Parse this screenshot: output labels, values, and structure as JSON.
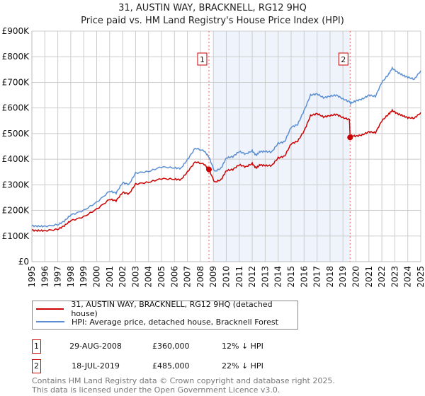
{
  "chart_data": {
    "type": "line",
    "title": "31, AUSTIN WAY, BRACKNELL, RG12 9HQ",
    "subtitle": "Price paid vs. HM Land Registry's House Price Index (HPI)",
    "xlim": [
      1995,
      2025
    ],
    "ylim": [
      0,
      900000
    ],
    "x_ticks": [
      "1995",
      "1996",
      "1997",
      "1998",
      "1999",
      "2000",
      "2001",
      "2002",
      "2003",
      "2004",
      "2005",
      "2006",
      "2007",
      "2008",
      "2009",
      "2010",
      "2011",
      "2012",
      "2013",
      "2014",
      "2015",
      "2016",
      "2017",
      "2018",
      "2019",
      "2020",
      "2021",
      "2022",
      "2023",
      "2024",
      "2025"
    ],
    "y_ticks": [
      {
        "value": 0,
        "label": "£0"
      },
      {
        "value": 100000,
        "label": "£100K"
      },
      {
        "value": 200000,
        "label": "£200K"
      },
      {
        "value": 300000,
        "label": "£300K"
      },
      {
        "value": 400000,
        "label": "£400K"
      },
      {
        "value": 500000,
        "label": "£500K"
      },
      {
        "value": 600000,
        "label": "£600K"
      },
      {
        "value": 700000,
        "label": "£700K"
      },
      {
        "value": 800000,
        "label": "£800K"
      },
      {
        "value": 900000,
        "label": "£900K"
      }
    ],
    "grid": true,
    "shaded_range": [
      2009.0,
      2019.55
    ],
    "series": [
      {
        "name": "31, AUSTIN WAY, BRACKNELL, RG12 9HQ (detached house)",
        "color": "#cc0000",
        "x": [
          1995,
          1995.5,
          1996,
          1997,
          1997.5,
          1998,
          1999,
          2000,
          2001,
          2001.5,
          2002,
          2002.5,
          2003,
          2004,
          2005,
          2006,
          2006.5,
          2007,
          2007.6,
          2008.3,
          2008.66,
          2009.1,
          2009.6,
          2010,
          2010.5,
          2011,
          2011.5,
          2012,
          2012.3,
          2012.6,
          2013,
          2013.5,
          2014,
          2014.5,
          2015,
          2015.5,
          2016,
          2016.5,
          2017,
          2017.5,
          2018,
          2018.5,
          2019,
          2019.5,
          2019.55,
          2019.6,
          2020,
          2020.5,
          2021,
          2021.5,
          2022,
          2022.5,
          2022.8,
          2023.2,
          2023.6,
          2024,
          2024.5,
          2025
        ],
        "y": [
          123000,
          121000,
          121000,
          126000,
          140000,
          160000,
          175000,
          205000,
          243000,
          238000,
          270000,
          265000,
          303000,
          310000,
          324000,
          322000,
          320000,
          350000,
          390000,
          380000,
          360000,
          310000,
          320000,
          355000,
          360000,
          378000,
          370000,
          383000,
          365000,
          378000,
          375000,
          375000,
          405000,
          412000,
          460000,
          470000,
          510000,
          570000,
          578000,
          565000,
          570000,
          575000,
          562000,
          555000,
          485000,
          492000,
          490000,
          495000,
          507000,
          503000,
          550000,
          575000,
          590000,
          578000,
          570000,
          562000,
          560000,
          582000
        ]
      },
      {
        "name": "HPI: Average price, detached house, Bracknell Forest",
        "color": "#5b8fd4",
        "x": [
          1995,
          1995.5,
          1996,
          1997,
          1997.5,
          1998,
          1999,
          2000,
          2001,
          2001.5,
          2002,
          2002.5,
          2003,
          2004,
          2005,
          2006,
          2006.5,
          2007,
          2007.6,
          2008.3,
          2008.66,
          2009.1,
          2009.6,
          2010,
          2010.5,
          2011,
          2011.5,
          2012,
          2012.3,
          2012.6,
          2013,
          2013.5,
          2014,
          2014.5,
          2015,
          2015.5,
          2016,
          2016.5,
          2017,
          2017.5,
          2018,
          2018.5,
          2019,
          2019.5,
          2019.55,
          2019.6,
          2020,
          2020.5,
          2021,
          2021.5,
          2022,
          2022.5,
          2022.8,
          2023.2,
          2023.6,
          2024,
          2024.5,
          2025
        ],
        "y": [
          140000,
          138000,
          138000,
          144000,
          158000,
          182000,
          200000,
          232000,
          275000,
          268000,
          308000,
          302000,
          346000,
          352000,
          370000,
          366000,
          364000,
          398000,
          443000,
          432000,
          408000,
          352000,
          365000,
          405000,
          410000,
          430000,
          420000,
          433000,
          415000,
          430000,
          430000,
          428000,
          462000,
          468000,
          525000,
          535000,
          590000,
          650000,
          655000,
          640000,
          646000,
          650000,
          635000,
          625000,
          622000,
          618000,
          628000,
          635000,
          650000,
          645000,
          700000,
          730000,
          755000,
          740000,
          728000,
          720000,
          712000,
          745000
        ]
      }
    ],
    "sales": [
      {
        "marker": "1",
        "x": 2008.66,
        "y": 360000,
        "date": "29-AUG-2008",
        "price": "£360,000",
        "hpi_diff": "12% ↓ HPI"
      },
      {
        "marker": "2",
        "x": 2019.55,
        "y": 485000,
        "date": "18-JUL-2019",
        "price": "£485,000",
        "hpi_diff": "22% ↓ HPI"
      }
    ]
  },
  "footer": {
    "line1": "Contains HM Land Registry data © Crown copyright and database right 2025.",
    "line2": "This data is licensed under the Open Government Licence v3.0."
  }
}
